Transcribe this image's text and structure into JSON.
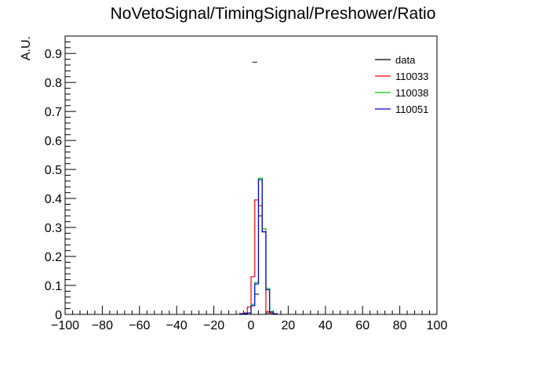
{
  "chart_data": {
    "type": "line",
    "title": "NoVetoSignal/TimingSignal/Preshower/Ratio",
    "xlabel": "",
    "ylabel": "A.U.",
    "xlim": [
      -100,
      100
    ],
    "ylim": [
      0,
      0.96
    ],
    "x_ticks": [
      -100,
      -80,
      -60,
      -40,
      -20,
      0,
      20,
      40,
      60,
      80,
      100
    ],
    "x_tick_labels": [
      "−100",
      "−80",
      "−60",
      "−40",
      "−20",
      "0",
      "20",
      "40",
      "60",
      "80",
      "100"
    ],
    "y_ticks": [
      0,
      0.1,
      0.2,
      0.3,
      0.4,
      0.5,
      0.6,
      0.7,
      0.8,
      0.9
    ],
    "y_tick_labels": [
      "0",
      "0.1",
      "0.2",
      "0.3",
      "0.4",
      "0.5",
      "0.6",
      "0.7",
      "0.8",
      "0.9"
    ],
    "grid": false,
    "legend_position": "top-right",
    "bin_edges": [
      -6,
      -4,
      -2,
      0,
      2,
      4,
      6,
      8,
      10,
      12,
      14
    ],
    "series": [
      {
        "name": "data",
        "color": "#000000",
        "style": "points",
        "points": [
          {
            "x": 2,
            "y": 0.87
          },
          {
            "x": 3,
            "y": 0.07
          },
          {
            "x": 5,
            "y": 0.34
          },
          {
            "x": 9,
            "y": 0.005
          }
        ]
      },
      {
        "name": "110033",
        "color": "#ff0000",
        "style": "step",
        "values": [
          0.003,
          0.005,
          0.025,
          0.13,
          0.395,
          0.375,
          0.285,
          0.01,
          0.004,
          0.002
        ]
      },
      {
        "name": "110038",
        "color": "#00cc00",
        "style": "step",
        "values": [
          0.002,
          0.003,
          0.005,
          0.035,
          0.11,
          0.47,
          0.295,
          0.09,
          0.01,
          0.003
        ]
      },
      {
        "name": "110051",
        "color": "#0000cc",
        "style": "step",
        "values": [
          0.002,
          0.003,
          0.005,
          0.03,
          0.105,
          0.465,
          0.285,
          0.085,
          0.008,
          0.002
        ]
      }
    ]
  }
}
